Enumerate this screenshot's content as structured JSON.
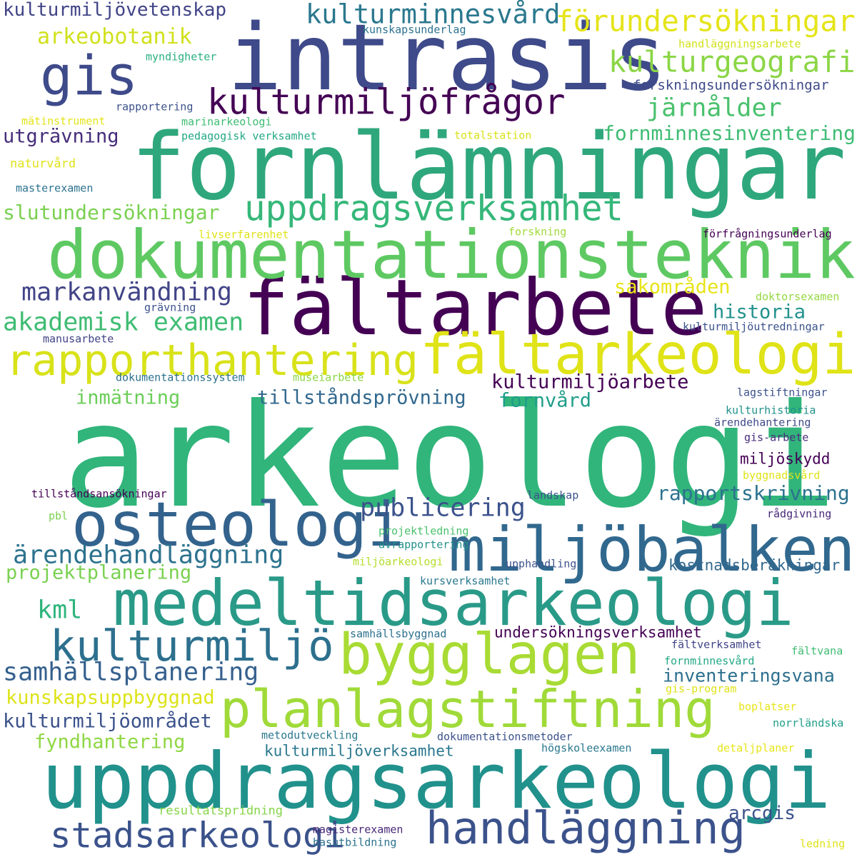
{
  "colors": {
    "c1": "#440154",
    "c2": "#3b528b",
    "c3": "#21918c",
    "c4": "#31a37a",
    "c5": "#5ec962",
    "c6": "#a8d83f",
    "c7": "#dfe317",
    "c8": "#31688e",
    "c9": "#443a83",
    "c10": "#27ad81"
  },
  "words": [
    {
      "text": "arkeologi",
      "weight": 1.0,
      "color": "#31b57b"
    },
    {
      "text": "fornlämningar",
      "weight": 0.72,
      "color": "#2fa77c"
    },
    {
      "text": "intrasis",
      "weight": 0.7,
      "color": "#3e4a89"
    },
    {
      "text": "uppdragsarkeologi",
      "weight": 0.62,
      "color": "#21918c"
    },
    {
      "text": "fältarbete",
      "weight": 0.6,
      "color": "#440154"
    },
    {
      "text": "dokumentationsteknik",
      "weight": 0.55,
      "color": "#5ec962"
    },
    {
      "text": "medeltidsarkeologi",
      "weight": 0.52,
      "color": "#2a9a88"
    },
    {
      "text": "miljöbalken",
      "weight": 0.5,
      "color": "#31688e"
    },
    {
      "text": "osteologi",
      "weight": 0.5,
      "color": "#33638d"
    },
    {
      "text": "fältarkeologi",
      "weight": 0.45,
      "color": "#dfe317"
    },
    {
      "text": "bygglagen",
      "weight": 0.45,
      "color": "#a8db34"
    },
    {
      "text": "planlagstiftning",
      "weight": 0.42,
      "color": "#a0da39"
    },
    {
      "text": "gis",
      "weight": 0.4,
      "color": "#3e4a89"
    },
    {
      "text": "handläggning",
      "weight": 0.38,
      "color": "#3b528b"
    },
    {
      "text": "rapporthantering",
      "weight": 0.35,
      "color": "#d8e219"
    },
    {
      "text": "kulturmiljö",
      "weight": 0.35,
      "color": "#2d708e"
    },
    {
      "text": "uppdragsverksamhet",
      "weight": 0.3,
      "color": "#35b779"
    },
    {
      "text": "stadsarkeologi",
      "weight": 0.3,
      "color": "#3b528b"
    },
    {
      "text": "kulturmiljöfrågor",
      "weight": 0.3,
      "color": "#440154"
    },
    {
      "text": "förundersökningar",
      "weight": 0.25,
      "color": "#e5e419"
    },
    {
      "text": "kulturgeografi",
      "weight": 0.25,
      "color": "#8bd646"
    },
    {
      "text": "kulturminnesvård",
      "weight": 0.23,
      "color": "#2a788e"
    },
    {
      "text": "järnålder",
      "weight": 0.22,
      "color": "#4ac16d"
    },
    {
      "text": "markanvändning",
      "weight": 0.22,
      "color": "#414487"
    },
    {
      "text": "akademisk examen",
      "weight": 0.22,
      "color": "#3fbc73"
    },
    {
      "text": "ärendehandläggning",
      "weight": 0.22,
      "color": "#2c728e"
    },
    {
      "text": "samhällsplanering",
      "weight": 0.22,
      "color": "#35608d"
    },
    {
      "text": "publicering",
      "weight": 0.22,
      "color": "#3b528b"
    },
    {
      "text": "kml",
      "weight": 0.22,
      "color": "#2fb47c"
    },
    {
      "text": "arkeobotanik",
      "weight": 0.18,
      "color": "#d0e11c"
    },
    {
      "text": "kulturmiljövetenskap",
      "weight": 0.16,
      "color": "#414487"
    },
    {
      "text": "historia",
      "weight": 0.17,
      "color": "#21918c"
    },
    {
      "text": "sakområden",
      "weight": 0.17,
      "color": "#e7e419"
    },
    {
      "text": "slutundersökningar",
      "weight": 0.18,
      "color": "#7ad151"
    },
    {
      "text": "fornminnesinventering",
      "weight": 0.18,
      "color": "#3fbc73"
    },
    {
      "text": "utgrävning",
      "weight": 0.17,
      "color": "#472d7b"
    },
    {
      "text": "rapportskrivning",
      "weight": 0.18,
      "color": "#2c728e"
    },
    {
      "text": "kulturmiljöarbete",
      "weight": 0.17,
      "color": "#440154"
    },
    {
      "text": "inmätning",
      "weight": 0.17,
      "color": "#6ccd5a"
    },
    {
      "text": "tillståndsprövning",
      "weight": 0.17,
      "color": "#31688e"
    },
    {
      "text": "fornvård",
      "weight": 0.17,
      "color": "#1f9e89"
    },
    {
      "text": "projektplanering",
      "weight": 0.17,
      "color": "#7ad151"
    },
    {
      "text": "kulturmiljöområdet",
      "weight": 0.17,
      "color": "#3b528b"
    },
    {
      "text": "kunskapsuppbyggnad",
      "weight": 0.17,
      "color": "#dde318"
    },
    {
      "text": "fyndhantering",
      "weight": 0.17,
      "color": "#8fd744"
    },
    {
      "text": "inventeringsvana",
      "weight": 0.16,
      "color": "#2d708e"
    },
    {
      "text": "undersökningsverksamhet",
      "weight": 0.14,
      "color": "#440154"
    },
    {
      "text": "kulturmiljöverksamhet",
      "weight": 0.14,
      "color": "#2a788e"
    },
    {
      "text": "kostnadsberäkningar",
      "weight": 0.14,
      "color": "#31688e"
    },
    {
      "text": "arcgis",
      "weight": 0.17,
      "color": "#3b528b"
    },
    {
      "text": "miljöskydd",
      "weight": 0.14,
      "color": "#440154"
    },
    {
      "text": "forskningsundersökningar",
      "weight": 0.13,
      "color": "#3e4a89"
    },
    {
      "text": "kulturmiljöutredningar",
      "weight": 0.11,
      "color": "#3b528b"
    },
    {
      "text": "förfrågningsunderlag",
      "weight": 0.11,
      "color": "#440154"
    },
    {
      "text": "handläggningsarbete",
      "weight": 0.11,
      "color": "#d2e21b"
    },
    {
      "text": "kunskapsunderlag",
      "weight": 0.11,
      "color": "#2c728e"
    },
    {
      "text": "myndigheter",
      "weight": 0.11,
      "color": "#2ab07f"
    },
    {
      "text": "rapportering",
      "weight": 0.11,
      "color": "#3b528b"
    },
    {
      "text": "mätinstrument",
      "weight": 0.11,
      "color": "#e5e419"
    },
    {
      "text": "marinarkeologi",
      "weight": 0.11,
      "color": "#3fbc73"
    },
    {
      "text": "pedagogisk verksamhet",
      "weight": 0.11,
      "color": "#22a884"
    },
    {
      "text": "totalstation",
      "weight": 0.11,
      "color": "#d8e219"
    },
    {
      "text": "naturvård",
      "weight": 0.12,
      "color": "#dfe318"
    },
    {
      "text": "masterexamen",
      "weight": 0.11,
      "color": "#2c728e"
    },
    {
      "text": "livserfarenhet",
      "weight": 0.11,
      "color": "#dfe318"
    },
    {
      "text": "forskning",
      "weight": 0.11,
      "color": "#a0da39"
    },
    {
      "text": "doktorsexamen",
      "weight": 0.11,
      "color": "#95d840"
    },
    {
      "text": "grävning",
      "weight": 0.11,
      "color": "#3b528b"
    },
    {
      "text": "manusarbete",
      "weight": 0.11,
      "color": "#414487"
    },
    {
      "text": "dokumentationssystem",
      "weight": 0.11,
      "color": "#2c728e"
    },
    {
      "text": "museiarbete",
      "weight": 0.11,
      "color": "#8bd646"
    },
    {
      "text": "lagstiftningar",
      "weight": 0.11,
      "color": "#3b528b"
    },
    {
      "text": "kulturhistoria",
      "weight": 0.11,
      "color": "#21918c"
    },
    {
      "text": "ärendehantering",
      "weight": 0.11,
      "color": "#3e4a89"
    },
    {
      "text": "gis-arbete",
      "weight": 0.11,
      "color": "#472d7b"
    },
    {
      "text": "byggnadsvård",
      "weight": 0.11,
      "color": "#dfe318"
    },
    {
      "text": "tillståndsansökningar",
      "weight": 0.11,
      "color": "#440154"
    },
    {
      "text": "landskap",
      "weight": 0.11,
      "color": "#3b528b"
    },
    {
      "text": "rådgivning",
      "weight": 0.11,
      "color": "#482878"
    },
    {
      "text": "pbl",
      "weight": 0.11,
      "color": "#7ad151"
    },
    {
      "text": "projektledning",
      "weight": 0.11,
      "color": "#4ac16d"
    },
    {
      "text": "avrapportering",
      "weight": 0.11,
      "color": "#21918c"
    },
    {
      "text": "miljöarkeologi",
      "weight": 0.11,
      "color": "#b5de2b"
    },
    {
      "text": "upphandling",
      "weight": 0.11,
      "color": "#3b528b"
    },
    {
      "text": "kursverksamhet",
      "weight": 0.11,
      "color": "#2a788e"
    },
    {
      "text": "samhällsbyggnad",
      "weight": 0.11,
      "color": "#2d708e"
    },
    {
      "text": "fältverksamhet",
      "weight": 0.11,
      "color": "#414487"
    },
    {
      "text": "fornminnesvård",
      "weight": 0.11,
      "color": "#22a884"
    },
    {
      "text": "fältvana",
      "weight": 0.11,
      "color": "#3fbc73"
    },
    {
      "text": "gis-program",
      "weight": 0.11,
      "color": "#dfe318"
    },
    {
      "text": "boplatser",
      "weight": 0.11,
      "color": "#e7e419"
    },
    {
      "text": "norrländska",
      "weight": 0.11,
      "color": "#1f9e89"
    },
    {
      "text": "metodutveckling",
      "weight": 0.11,
      "color": "#2a788e"
    },
    {
      "text": "dokumentationsmetoder",
      "weight": 0.11,
      "color": "#3b528b"
    },
    {
      "text": "högskoleexamen",
      "weight": 0.11,
      "color": "#2a788e"
    },
    {
      "text": "detaljplaner",
      "weight": 0.11,
      "color": "#e5e419"
    },
    {
      "text": "resultatspridning",
      "weight": 0.12,
      "color": "#86d549"
    },
    {
      "text": "magisterexamen",
      "weight": 0.11,
      "color": "#482878"
    },
    {
      "text": "basutbildning",
      "weight": 0.11,
      "color": "#2c728e"
    },
    {
      "text": "ledning",
      "weight": 0.11,
      "color": "#dfe318"
    }
  ]
}
